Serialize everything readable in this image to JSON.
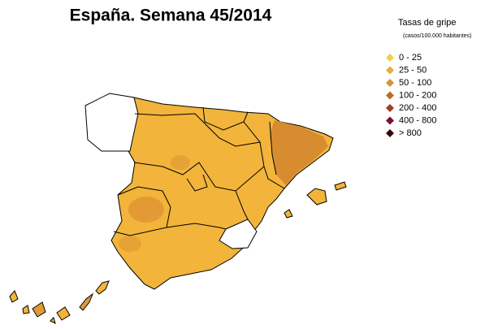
{
  "title": "España. Semana 45/2014",
  "legend": {
    "title": "Tasas de gripe",
    "subtitle": "(casos/100.000 habitantes)",
    "items": [
      {
        "label": "0 - 25",
        "color": "#f2cf45"
      },
      {
        "label": "25 - 50",
        "color": "#e8ae3a"
      },
      {
        "label": "50 - 100",
        "color": "#d89236"
      },
      {
        "label": "100 - 200",
        "color": "#bf6a28"
      },
      {
        "label": "200 - 400",
        "color": "#9e3f26"
      },
      {
        "label": "400 - 800",
        "color": "#7a0f2e"
      },
      {
        "label": "> 800",
        "color": "#3a0808"
      }
    ]
  }
}
